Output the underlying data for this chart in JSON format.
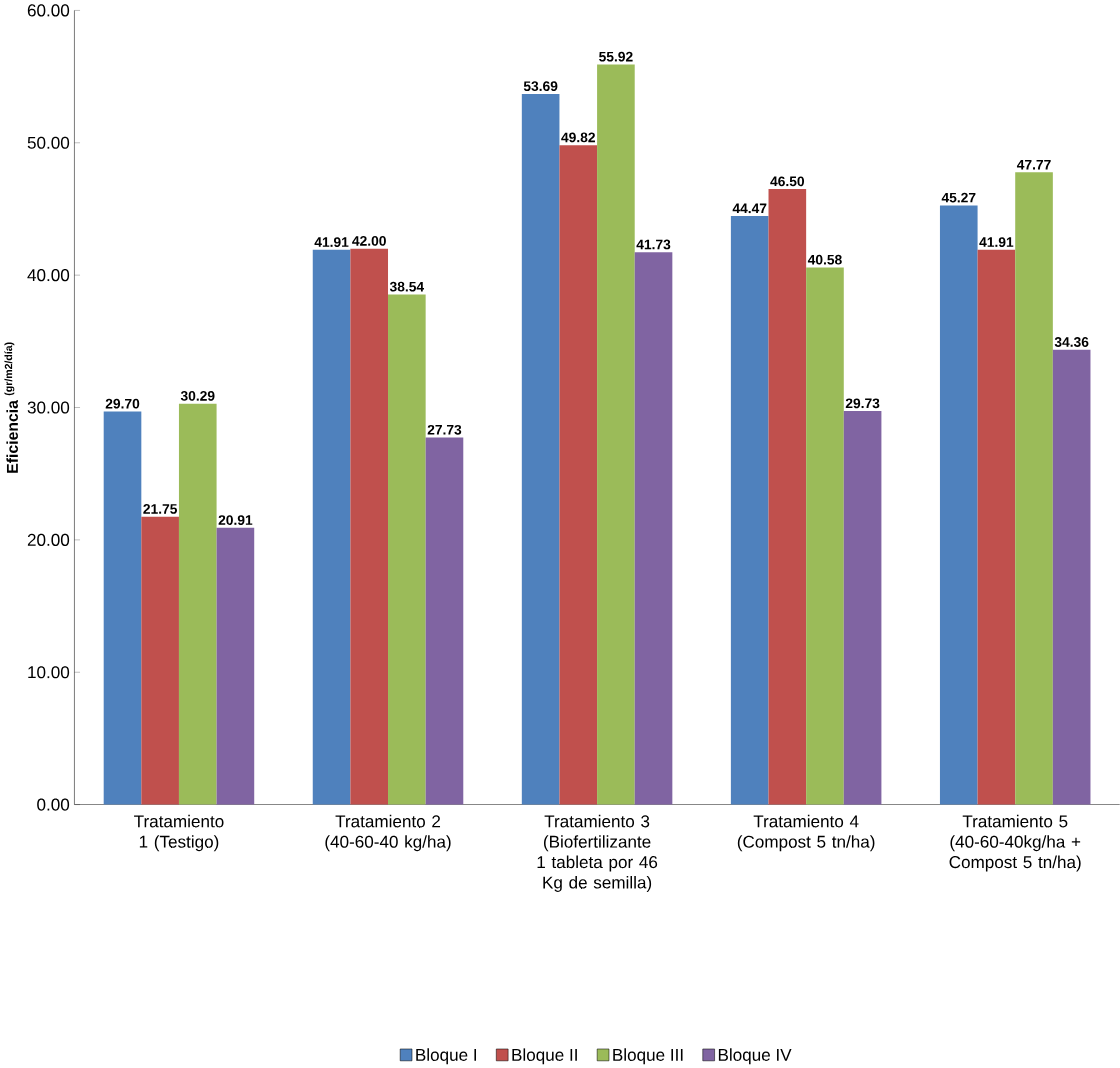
{
  "chart_data": {
    "type": "bar",
    "ylabel": "Eficiencia $^{(gr/m2/día)}$",
    "categories": [
      "Tratamiento 1 (Testigo)",
      "Tratamiento 2 (40-60-40 kg/ha)",
      "Tratamiento 3 (Biofertilizante 1 tableta por 46 Kg de semilla)",
      "Tratamiento 4 (Compost 5 tn/ha)",
      "Tratamiento 5 (40-60-40kg/ha + Compost 5 tn/ha)"
    ],
    "series": [
      {
        "name": "Bloque I",
        "color": "#4f81bd",
        "values": [
          29.7,
          41.91,
          53.69,
          44.47,
          45.27
        ],
        "value_labels": [
          "29.70",
          "41.91",
          "53.69",
          "44.47",
          "45.27"
        ]
      },
      {
        "name": "Bloque II",
        "color": "#c0504d",
        "values": [
          21.75,
          42.0,
          49.82,
          46.5,
          41.91
        ],
        "value_labels": [
          "21.75",
          "42.00",
          "49.82",
          "46.50",
          "41.91"
        ]
      },
      {
        "name": "Bloque III",
        "color": "#9bbb59",
        "values": [
          30.29,
          38.54,
          55.92,
          40.58,
          47.77
        ],
        "value_labels": [
          "30.29",
          "38.54",
          "55.92",
          "40.58",
          "47.77"
        ]
      },
      {
        "name": "Bloque IV",
        "color": "#8064a2",
        "values": [
          20.91,
          27.73,
          41.73,
          29.73,
          34.36
        ],
        "value_labels": [
          "20.91",
          "27.73",
          "41.73",
          "29.73",
          "34.36"
        ]
      }
    ],
    "ylim": [
      0,
      60
    ],
    "yticks": [
      {
        "value": 0,
        "label": "0.00"
      },
      {
        "value": 10,
        "label": "10.00"
      },
      {
        "value": 20,
        "label": "20.00"
      },
      {
        "value": 30,
        "label": "30.00"
      },
      {
        "value": 40,
        "label": "40.00"
      },
      {
        "value": 50,
        "label": "50.00"
      },
      {
        "value": 60,
        "label": "60.00"
      }
    ],
    "grid": false,
    "legend": "bottom"
  }
}
